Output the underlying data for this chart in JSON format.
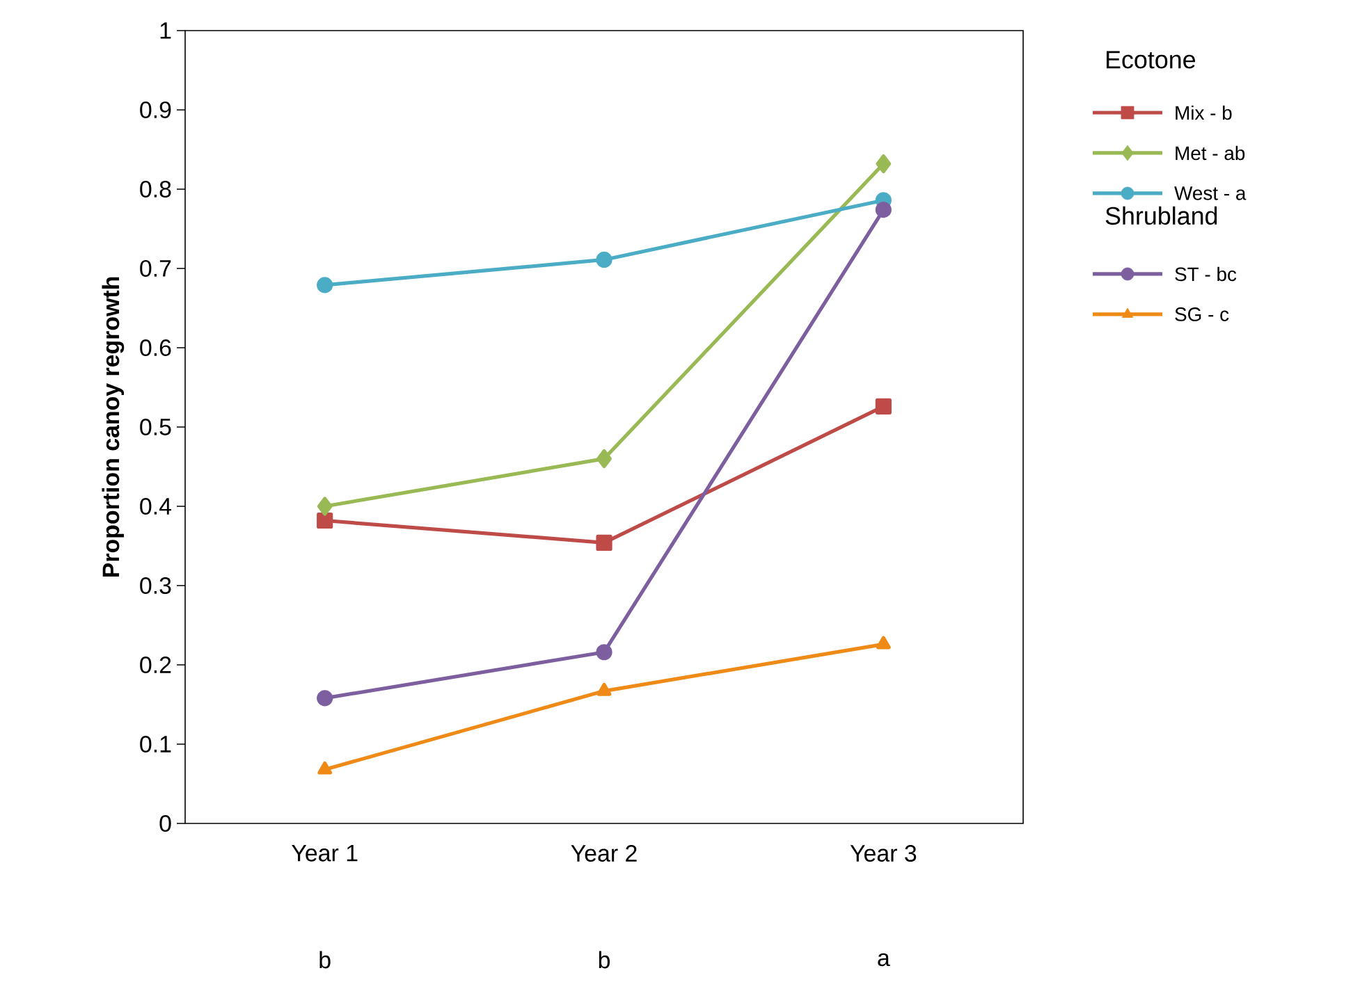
{
  "chart_data": {
    "type": "line",
    "ylabel": "Proportion canoy regrowth",
    "legend_title": "Ecotone",
    "categories": [
      "Year 1",
      "Year 2",
      "Year 3"
    ],
    "series": [
      {
        "name": "Mix   - b",
        "color": "#be4b48",
        "marker": "square",
        "values": [
          0.382,
          0.354,
          0.526
        ]
      },
      {
        "name": "Met   - ab",
        "color": "#98b954",
        "marker": "diamond",
        "values": [
          0.4,
          0.46,
          0.832
        ]
      },
      {
        "name": "West - a",
        "color": "#4bacc6",
        "marker": "circle",
        "values": [
          0.679,
          0.711,
          0.786
        ]
      },
      {
        "name": "ST    - bc",
        "color": "#7d5fa0",
        "marker": "circle",
        "values": [
          0.158,
          0.216,
          0.774
        ]
      },
      {
        "name": "SG    - c",
        "color": "#ef8a17",
        "marker": "triangle",
        "values": [
          0.068,
          0.167,
          0.226
        ]
      }
    ],
    "annotations": [
      "Shrubland",
      "b",
      "b",
      "a"
    ],
    "ylim": [
      0,
      1
    ],
    "yticks": [
      0,
      0.1,
      0.2,
      0.3,
      0.4,
      0.5,
      0.6,
      0.7,
      0.8,
      0.9,
      1
    ],
    "grid": false,
    "legend": "right",
    "line_style": "solid"
  }
}
